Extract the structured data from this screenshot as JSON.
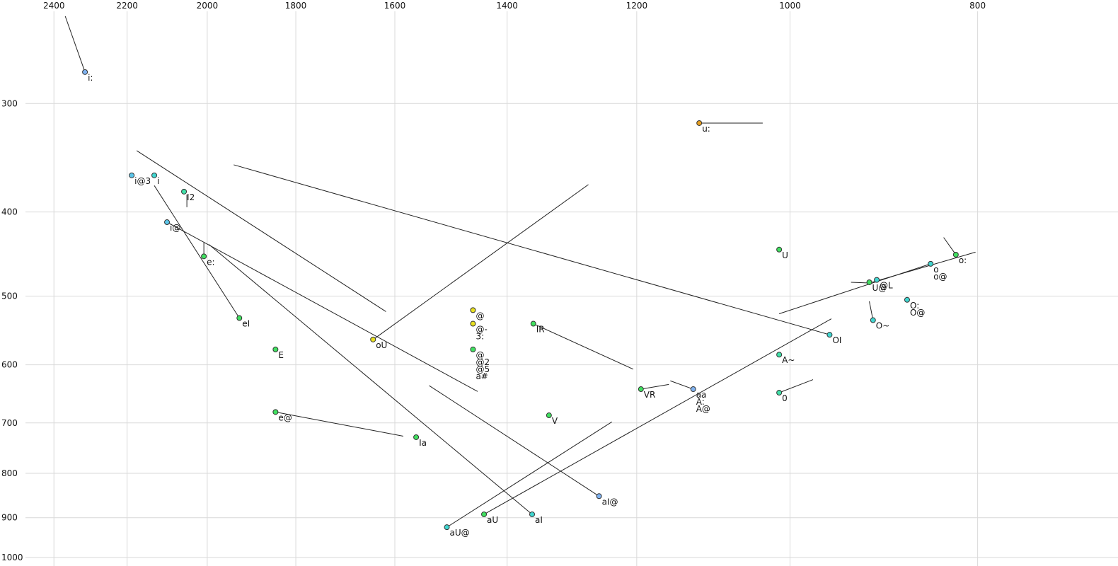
{
  "chart_data": {
    "type": "scatter",
    "xlog": true,
    "ylog": true,
    "grid": true,
    "xlim": [
      2559,
      677
    ],
    "ylim": [
      228,
      1023
    ],
    "xticks": [
      2400,
      2200,
      2000,
      1800,
      1600,
      1400,
      1200,
      1000,
      800
    ],
    "yticks": [
      300,
      400,
      500,
      600,
      700,
      800,
      900,
      1000
    ],
    "points": [
      {
        "labels": [
          "i:"
        ],
        "x": 2313,
        "y": 276,
        "color": "#7fb2f0"
      },
      {
        "labels": [
          "i@3"
        ],
        "x": 2188,
        "y": 363,
        "color": "#5cc6ea"
      },
      {
        "labels": [
          "i"
        ],
        "x": 2130,
        "y": 363,
        "color": "#40d6d0"
      },
      {
        "labels": [
          "I2"
        ],
        "x": 2056,
        "y": 379,
        "color": "#40e0a8"
      },
      {
        "labels": [
          "i@"
        ],
        "x": 2098,
        "y": 411,
        "color": "#5cc6ea"
      },
      {
        "labels": [
          "e:"
        ],
        "x": 2008,
        "y": 450,
        "color": "#40e060"
      },
      {
        "labels": [
          "eI"
        ],
        "x": 1925,
        "y": 530,
        "color": "#40e060"
      },
      {
        "labels": [
          "E"
        ],
        "x": 1844,
        "y": 576,
        "color": "#40e060"
      },
      {
        "labels": [
          "e@"
        ],
        "x": 1844,
        "y": 680,
        "color": "#40e060"
      },
      {
        "labels": [
          "oU"
        ],
        "x": 1642,
        "y": 561,
        "color": "#e8e020"
      },
      {
        "labels": [
          "@"
        ],
        "x": 1458,
        "y": 519,
        "color": "#e8e020"
      },
      {
        "labels": [
          "@-",
          "3:"
        ],
        "x": 1458,
        "y": 538,
        "color": "#e8e020"
      },
      {
        "labels": [
          "@",
          "@2",
          "@5",
          "a#"
        ],
        "x": 1458,
        "y": 576,
        "color": "#40e060"
      },
      {
        "labels": [
          "Ia"
        ],
        "x": 1560,
        "y": 727,
        "color": "#40e060"
      },
      {
        "labels": [
          "V"
        ],
        "x": 1332,
        "y": 686,
        "color": "#40e060"
      },
      {
        "labels": [
          "IR"
        ],
        "x": 1357,
        "y": 538,
        "color": "#40e060"
      },
      {
        "labels": [
          "VR"
        ],
        "x": 1194,
        "y": 640,
        "color": "#40e060"
      },
      {
        "labels": [
          "aa",
          "A:",
          "A@"
        ],
        "x": 1122,
        "y": 640,
        "color": "#7fb2f0"
      },
      {
        "labels": [
          "aI@"
        ],
        "x": 1255,
        "y": 850,
        "color": "#7fb2f0"
      },
      {
        "labels": [
          "aI"
        ],
        "x": 1359,
        "y": 892,
        "color": "#40d6d0"
      },
      {
        "labels": [
          "aU"
        ],
        "x": 1439,
        "y": 892,
        "color": "#40e060"
      },
      {
        "labels": [
          "aU@"
        ],
        "x": 1504,
        "y": 923,
        "color": "#40d6d0"
      },
      {
        "labels": [
          "u:"
        ],
        "x": 1114,
        "y": 316,
        "color": "#e8a020"
      },
      {
        "labels": [
          "U"
        ],
        "x": 1013,
        "y": 442,
        "color": "#40e060"
      },
      {
        "labels": [
          "A~"
        ],
        "x": 1013,
        "y": 584,
        "color": "#40e0a8"
      },
      {
        "labels": [
          "0"
        ],
        "x": 1013,
        "y": 646,
        "color": "#40e0a8"
      },
      {
        "labels": [
          "OI"
        ],
        "x": 954,
        "y": 554,
        "color": "#40d6d0"
      },
      {
        "labels": [
          "U@"
        ],
        "x": 910,
        "y": 482,
        "color": "#40e060"
      },
      {
        "labels": [
          "@L"
        ],
        "x": 902,
        "y": 479,
        "color": "#40d6d0"
      },
      {
        "labels": [
          "O~"
        ],
        "x": 906,
        "y": 533,
        "color": "#40d6d0"
      },
      {
        "labels": [
          "O:",
          "O@"
        ],
        "x": 870,
        "y": 505,
        "color": "#40d6d0"
      },
      {
        "labels": [
          "o",
          "o@"
        ],
        "x": 846,
        "y": 459,
        "color": "#40d6d0"
      },
      {
        "labels": [
          "o:"
        ],
        "x": 821,
        "y": 448,
        "color": "#40e060"
      }
    ],
    "segments": [
      {
        "x": [
          2368,
          2313
        ],
        "y": [
          238,
          276
        ]
      },
      {
        "x": [
          2175,
          1617
        ],
        "y": [
          340,
          521
        ]
      },
      {
        "x": [
          2130,
          1925
        ],
        "y": [
          373,
          530
        ]
      },
      {
        "x": [
          2049,
          2049
        ],
        "y": [
          382,
          395
        ]
      },
      {
        "x": [
          2098,
          1450
        ],
        "y": [
          411,
          644
        ]
      },
      {
        "x": [
          2008,
          2008
        ],
        "y": [
          434,
          450
        ]
      },
      {
        "x": [
          1996,
          1359
        ],
        "y": [
          436,
          892
        ]
      },
      {
        "x": [
          1938,
          954
        ],
        "y": [
          353,
          554
        ]
      },
      {
        "x": [
          1638,
          1271
        ],
        "y": [
          559,
          372
        ]
      },
      {
        "x": [
          1844,
          1584
        ],
        "y": [
          680,
          725
        ]
      },
      {
        "x": [
          1536,
          1255
        ],
        "y": [
          634,
          850
        ]
      },
      {
        "x": [
          1504,
          1236
        ],
        "y": [
          923,
          698
        ]
      },
      {
        "x": [
          1439,
          952
        ],
        "y": [
          892,
          531
        ]
      },
      {
        "x": [
          1357,
          1205
        ],
        "y": [
          538,
          607
        ]
      },
      {
        "x": [
          1194,
          1155
        ],
        "y": [
          640,
          632
        ]
      },
      {
        "x": [
          1153,
          1122
        ],
        "y": [
          626,
          640
        ]
      },
      {
        "x": [
          1114,
          1033
        ],
        "y": [
          316,
          316
        ]
      },
      {
        "x": [
          1013,
          973
        ],
        "y": [
          646,
          624
        ]
      },
      {
        "x": [
          1013,
          846
        ],
        "y": [
          524,
          459
        ]
      },
      {
        "x": [
          930,
          910
        ],
        "y": [
          482,
          483
        ]
      },
      {
        "x": [
          910,
          802
        ],
        "y": [
          483,
          445
        ]
      },
      {
        "x": [
          833,
          821
        ],
        "y": [
          428,
          448
        ]
      },
      {
        "x": [
          910,
          906
        ],
        "y": [
          507,
          533
        ]
      }
    ]
  }
}
